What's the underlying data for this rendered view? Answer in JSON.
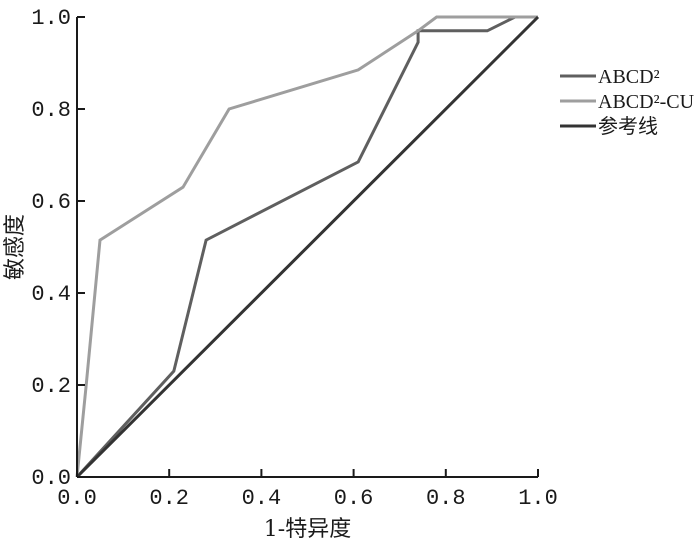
{
  "chart_data": {
    "type": "line",
    "title": "",
    "xlabel": "1-特异度",
    "ylabel": "敏感度",
    "xlim": [
      0,
      1
    ],
    "ylim": [
      0,
      1
    ],
    "xticks": [
      "0.0",
      "0.2",
      "0.4",
      "0.6",
      "0.8",
      "1.0"
    ],
    "yticks": [
      "0.0",
      "0.2",
      "0.4",
      "0.6",
      "0.8",
      "1.0"
    ],
    "grid": false,
    "legend_position": "right",
    "series": [
      {
        "name": "ABCD²",
        "color": "#5f5f5f",
        "x": [
          0.0,
          0.21,
          0.28,
          0.61,
          0.74,
          0.74,
          0.89,
          0.95,
          1.0
        ],
        "y": [
          0.0,
          0.23,
          0.515,
          0.685,
          0.945,
          0.97,
          0.97,
          1.0,
          1.0
        ]
      },
      {
        "name": "ABCD²-CU",
        "color": "#9e9e9e",
        "x": [
          0.0,
          0.02,
          0.05,
          0.23,
          0.33,
          0.61,
          0.74,
          0.78,
          1.0
        ],
        "y": [
          0.0,
          0.2,
          0.515,
          0.63,
          0.8,
          0.885,
          0.97,
          1.0,
          1.0
        ]
      },
      {
        "name": "参考线",
        "color": "#333333",
        "x": [
          0.0,
          1.0
        ],
        "y": [
          0.0,
          1.0
        ]
      }
    ]
  }
}
